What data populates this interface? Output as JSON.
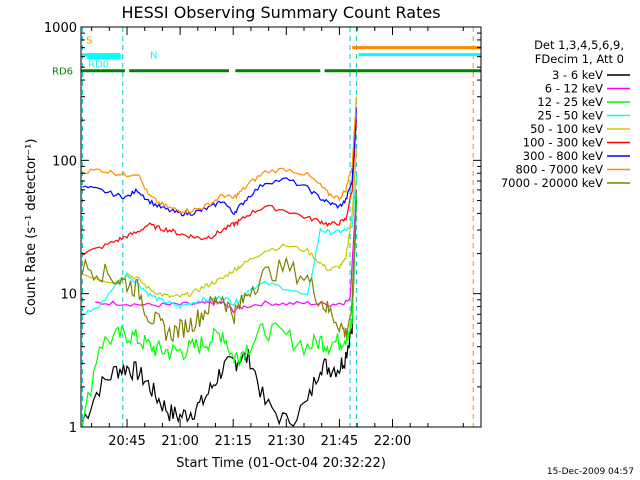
{
  "chart_data": {
    "type": "line",
    "title": "HESSI Observing Summary Count Rates",
    "xlabel": "Start Time (01-Oct-04 20:32:22)",
    "ylabel": "Count Rate (s⁻¹ detector⁻¹)",
    "y_scale": "log",
    "ylim": [
      1,
      1000
    ],
    "y_ticks": [
      1,
      10,
      100,
      1000
    ],
    "y_tick_labels": [
      "1",
      "10",
      "100",
      "1000"
    ],
    "xlim_minutes": [
      20.5333,
      22.4167
    ],
    "x_ticks": [
      20.75,
      21.0,
      21.25,
      21.5,
      21.75,
      22.0
    ],
    "x_tick_labels": [
      "20:45",
      "21:00",
      "21:15",
      "21:30",
      "21:45",
      "22:00"
    ],
    "grid": false,
    "legend_position": "right",
    "legend_header": [
      "Det 1,3,4,5,6,9,",
      "FDecim 1, Att 0"
    ],
    "series": [
      {
        "name": "3 - 6 keV",
        "color": "#000000",
        "x": [
          20.54,
          20.62,
          20.7,
          20.75,
          20.8,
          20.85,
          20.9,
          20.95,
          21.0,
          21.05,
          21.1,
          21.15,
          21.2,
          21.25,
          21.28,
          21.33,
          21.4,
          21.5,
          21.6,
          21.66,
          21.7,
          21.75,
          21.78,
          21.81,
          21.83
        ],
        "y": [
          1.1,
          2.0,
          2.7,
          2.8,
          2.6,
          2.1,
          1.6,
          1.3,
          1.2,
          1.3,
          1.5,
          2.0,
          2.8,
          3.0,
          3.3,
          3.3,
          1.5,
          1.1,
          1.5,
          3.0,
          2.8,
          2.8,
          3.5,
          6.0,
          50
        ]
      },
      {
        "name": "6 - 12 keV",
        "color": "#ff00ff",
        "x": [
          20.6,
          20.7,
          20.8,
          20.9,
          21.0,
          21.1,
          21.15,
          21.2,
          21.25,
          21.3,
          21.4,
          21.5,
          21.6,
          21.7,
          21.76,
          21.8,
          21.83
        ],
        "y": [
          8.5,
          8.5,
          8.3,
          8.2,
          8.3,
          8.4,
          8.5,
          8.5,
          7.5,
          8.0,
          8.5,
          8.4,
          8.5,
          8.3,
          8.5,
          9.0,
          60
        ]
      },
      {
        "name": "12 - 25 keV",
        "color": "#00ff00",
        "x": [
          20.54,
          20.62,
          20.7,
          20.75,
          20.8,
          20.85,
          20.9,
          20.95,
          21.0,
          21.05,
          21.1,
          21.15,
          21.2,
          21.25,
          21.28,
          21.33,
          21.4,
          21.5,
          21.6,
          21.66,
          21.7,
          21.75,
          21.78,
          21.81,
          21.83
        ],
        "y": [
          1.0,
          4.2,
          4.8,
          5.0,
          4.6,
          4.1,
          3.8,
          3.7,
          3.7,
          3.9,
          4.2,
          4.6,
          5.2,
          3.3,
          3.5,
          4.2,
          5.5,
          4.8,
          4.0,
          4.5,
          4.2,
          4.4,
          4.8,
          6.0,
          55
        ]
      },
      {
        "name": "25 - 50 keV",
        "color": "#00ffff",
        "x": [
          20.54,
          20.62,
          20.7,
          20.75,
          20.8,
          20.85,
          20.9,
          20.95,
          21.0,
          21.05,
          21.1,
          21.15,
          21.2,
          21.25,
          21.28,
          21.33,
          21.4,
          21.5,
          21.6,
          21.66,
          21.7,
          21.75,
          21.78,
          21.81,
          21.83
        ],
        "y": [
          7.0,
          8.0,
          12,
          14,
          12,
          10,
          9,
          8.5,
          8,
          8.5,
          9,
          9,
          9.5,
          8.5,
          9,
          11,
          12,
          11,
          9.5,
          30,
          29,
          29,
          30,
          31,
          80
        ]
      },
      {
        "name": "50 - 100 keV",
        "color": "#c8c800",
        "x": [
          20.54,
          20.62,
          20.7,
          20.75,
          20.8,
          20.85,
          20.9,
          20.95,
          21.0,
          21.05,
          21.1,
          21.15,
          21.2,
          21.25,
          21.28,
          21.33,
          21.4,
          21.5,
          21.6,
          21.66,
          21.7,
          21.75,
          21.78,
          21.81,
          21.83
        ],
        "y": [
          14,
          13,
          12,
          14,
          13,
          11,
          10,
          9.5,
          9.5,
          10,
          11,
          12,
          13,
          15,
          16,
          18,
          21,
          23,
          21,
          17,
          15,
          16,
          18,
          40,
          120
        ]
      },
      {
        "name": "100 - 300 keV",
        "color": "#ff0000",
        "x": [
          20.54,
          20.62,
          20.7,
          20.75,
          20.8,
          20.85,
          20.9,
          20.95,
          21.0,
          21.05,
          21.1,
          21.15,
          21.2,
          21.25,
          21.28,
          21.33,
          21.4,
          21.5,
          21.6,
          21.66,
          21.7,
          21.75,
          21.78,
          21.81,
          21.83
        ],
        "y": [
          20,
          22,
          25,
          27,
          29,
          33,
          31,
          30,
          28,
          27,
          26,
          27,
          30,
          33,
          35,
          40,
          45,
          42,
          37,
          35,
          33,
          34,
          36,
          60,
          200
        ]
      },
      {
        "name": "300 - 800 keV",
        "color": "#0000ff",
        "x": [
          20.54,
          20.62,
          20.7,
          20.75,
          20.8,
          20.85,
          20.9,
          20.95,
          21.0,
          21.05,
          21.1,
          21.15,
          21.2,
          21.25,
          21.28,
          21.33,
          21.4,
          21.5,
          21.6,
          21.66,
          21.7,
          21.75,
          21.78,
          21.81,
          21.83
        ],
        "y": [
          63,
          60,
          55,
          53,
          60,
          50,
          45,
          42,
          40,
          40,
          42,
          45,
          50,
          40,
          45,
          55,
          68,
          72,
          62,
          52,
          48,
          45,
          50,
          70,
          250
        ]
      },
      {
        "name": "800 - 7000 keV",
        "color": "#ff8c00",
        "x": [
          20.54,
          20.62,
          20.7,
          20.75,
          20.8,
          20.85,
          20.9,
          20.95,
          21.0,
          21.05,
          21.1,
          21.15,
          21.2,
          21.25,
          21.28,
          21.33,
          21.4,
          21.5,
          21.6,
          21.66,
          21.7,
          21.75,
          21.78,
          21.81,
          21.83
        ],
        "y": [
          82,
          85,
          80,
          78,
          80,
          55,
          48,
          44,
          42,
          42,
          44,
          48,
          55,
          52,
          57,
          68,
          82,
          86,
          78,
          65,
          56,
          52,
          60,
          90,
          300
        ]
      },
      {
        "name": "7000 - 20000 keV",
        "color": "#7f7f00",
        "x": [
          20.54,
          20.62,
          20.7,
          20.75,
          20.8,
          20.85,
          20.9,
          20.95,
          21.0,
          21.05,
          21.1,
          21.15,
          21.2,
          21.25,
          21.28,
          21.33,
          21.4,
          21.5,
          21.6,
          21.66,
          21.7,
          21.75,
          21.78,
          21.81,
          21.83
        ],
        "y": [
          16,
          15,
          13,
          12,
          11,
          7,
          6,
          5,
          5.5,
          6,
          7,
          8.5,
          9.5,
          7,
          8,
          11,
          14,
          16,
          13,
          9,
          7.5,
          6,
          5,
          8,
          60
        ]
      }
    ],
    "flags": [
      {
        "label": "S",
        "color": "#ff8c00",
        "level": 700
      },
      {
        "label": "N",
        "color": "#00ffff",
        "level": 620
      },
      {
        "label": "RD0",
        "color": "#00ffff",
        "level": 590
      },
      {
        "label": "RD6",
        "color": "#008000",
        "level": 470
      }
    ],
    "vertical_markers": [
      20.54,
      20.73,
      21.8,
      21.83,
      22.38
    ]
  },
  "timestamp": "15-Dec-2009 04:57"
}
